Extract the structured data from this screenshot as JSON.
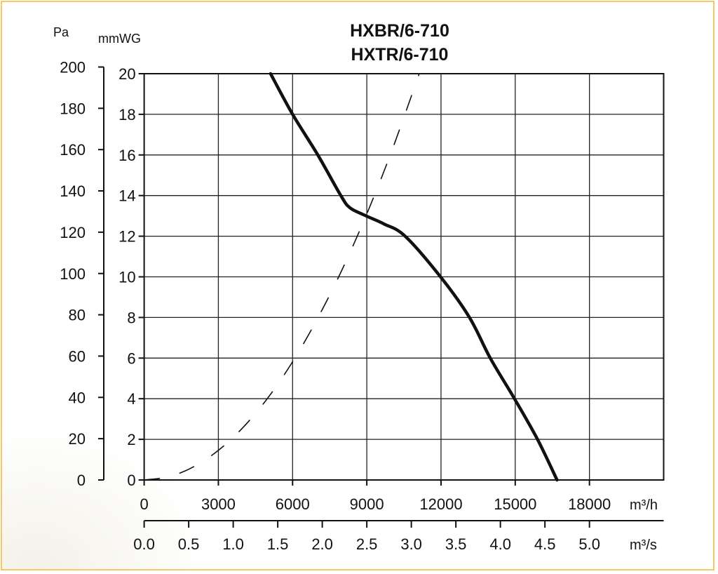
{
  "chart_data": {
    "type": "line",
    "title": [
      "HXBR/6-710",
      "HXTR/6-710"
    ],
    "xlabel": "m³/h",
    "x2label": "m³/s",
    "ylabel": "mmWG",
    "y2label": "Pa",
    "xlim": [
      0,
      21000
    ],
    "ylim": [
      0,
      20
    ],
    "x2lim": [
      0,
      5.833
    ],
    "y2lim": [
      0,
      200
    ],
    "grid": true,
    "xticks": [
      "0",
      "3000",
      "6000",
      "9000",
      "12000",
      "15000",
      "18000"
    ],
    "xtick_values": [
      0,
      3000,
      6000,
      9000,
      12000,
      15000,
      18000
    ],
    "x2ticks": [
      "0.0",
      "0.5",
      "1.0",
      "1.5",
      "2.0",
      "2.5",
      "3.0",
      "3.5",
      "4.0",
      "4.5",
      "5.0"
    ],
    "x2tick_values": [
      0,
      0.5,
      1,
      1.5,
      2,
      2.5,
      3,
      3.5,
      4,
      4.5,
      5
    ],
    "yticks": [
      "0",
      "2",
      "4",
      "6",
      "8",
      "10",
      "12",
      "14",
      "16",
      "18",
      "20"
    ],
    "ytick_values": [
      0,
      2,
      4,
      6,
      8,
      10,
      12,
      14,
      16,
      18,
      20
    ],
    "y2ticks": [
      "0",
      "20",
      "40",
      "60",
      "80",
      "100",
      "120",
      "140",
      "160",
      "180",
      "200"
    ],
    "y2tick_values": [
      0,
      20,
      40,
      60,
      80,
      100,
      120,
      140,
      160,
      180,
      200
    ],
    "series": [
      {
        "style": "solid",
        "color": "#111111",
        "x": [
          5110,
          6000,
          7020,
          7950,
          8320,
          8970,
          9700,
          10550,
          11980,
          13150,
          13990,
          14970,
          15900,
          16690
        ],
        "y": [
          20,
          18,
          16,
          14,
          13.4,
          13.0,
          12.6,
          12.0,
          10.0,
          8.0,
          6.0,
          4.0,
          2.0,
          0
        ]
      },
      {
        "style": "dashed",
        "color": "#111111",
        "x": [
          0,
          1000,
          2000,
          3000,
          4000,
          5000,
          6000,
          7000,
          8000,
          9000,
          10000,
          11120
        ],
        "y": [
          0,
          0.16,
          0.65,
          1.46,
          2.59,
          4.04,
          5.82,
          7.93,
          10.35,
          13.1,
          16.17,
          20
        ]
      }
    ]
  }
}
